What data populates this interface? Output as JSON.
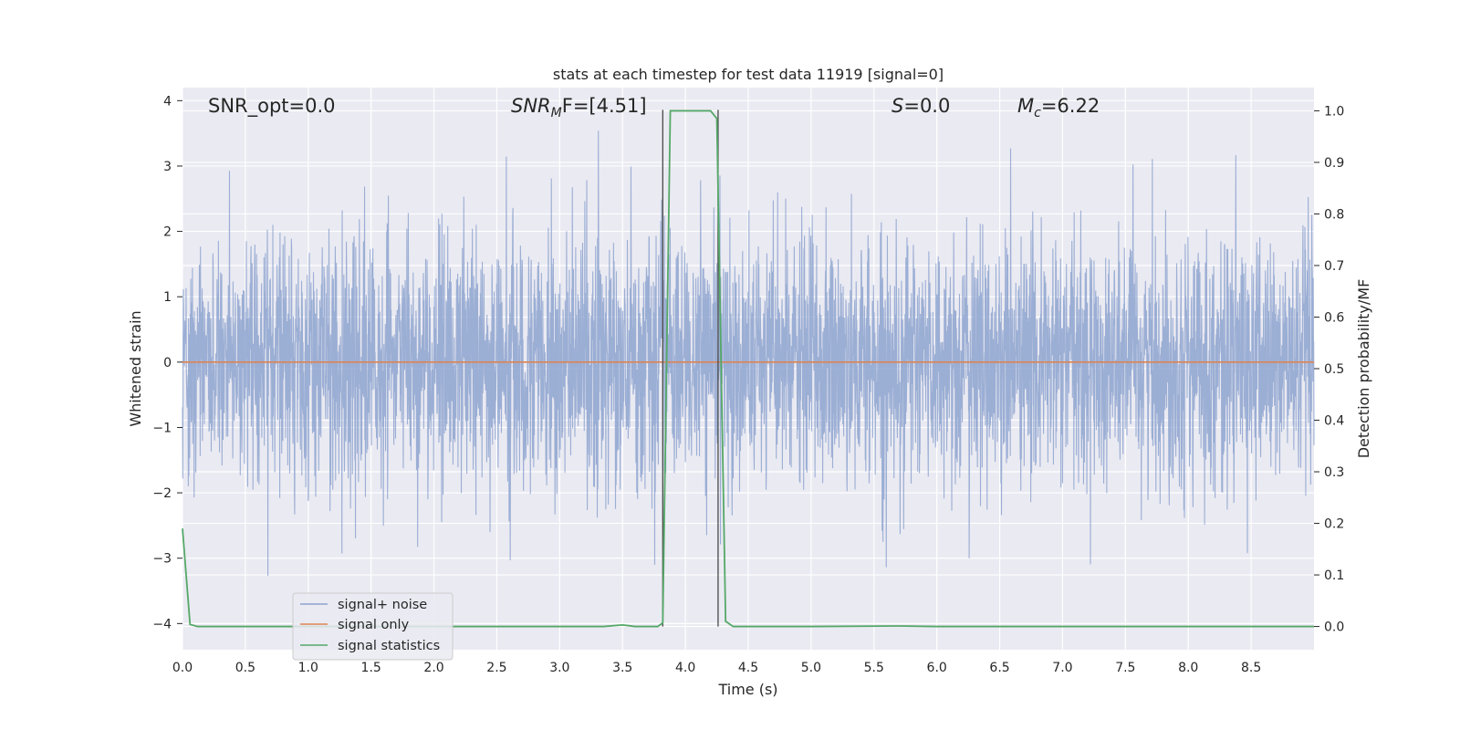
{
  "chart_data": {
    "type": "line",
    "title": "stats at each timestep for test data 11919 [signal=0]",
    "xlabel": "Time (s)",
    "ylabel": "Whitened strain",
    "ylabel_right": "Detection probability/MF",
    "xlim": [
      0.0,
      9.0
    ],
    "ylim": [
      -4.4,
      4.2
    ],
    "ylim_right": [
      -0.045,
      1.045
    ],
    "x_ticks": [
      "0.0",
      "0.5",
      "1.0",
      "1.5",
      "2.0",
      "2.5",
      "3.0",
      "3.5",
      "4.0",
      "4.5",
      "5.0",
      "5.5",
      "6.0",
      "6.5",
      "7.0",
      "7.5",
      "8.0",
      "8.5"
    ],
    "y_ticks": [
      "4",
      "3",
      "2",
      "1",
      "0",
      "−1",
      "−2",
      "−3",
      "−4"
    ],
    "y_ticks_right": [
      "1.0",
      "0.9",
      "0.8",
      "0.7",
      "0.6",
      "0.5",
      "0.4",
      "0.3",
      "0.2",
      "0.1",
      "0.0"
    ],
    "grid": true,
    "legend_position": "lower-left",
    "annotations": {
      "snr_opt": "SNR_opt=0.0",
      "snr_mf_main": "SNR",
      "snr_mf_sub": "M",
      "snr_mf_rest": "F=[4.51]",
      "s_main": "S",
      "s_rest": "=0.0",
      "mc_main": "M",
      "mc_sub": "c",
      "mc_rest": "=6.22"
    },
    "vertical_markers": [
      3.82,
      4.26
    ],
    "series": [
      {
        "name": "signal+ noise",
        "color": "#8da3cf",
        "description_values": "whitened strain noise, approx ±2 typical with peaks to about ±3.8",
        "envelope": {
          "typical_amplitude": 1.5,
          "max_amplitude": 3.8
        }
      },
      {
        "name": "signal only",
        "color": "#dd8452",
        "x": [
          0.0,
          9.0
        ],
        "y": [
          0.0,
          0.0
        ]
      },
      {
        "name": "signal statistics",
        "color": "#55a868",
        "axis": "right",
        "x": [
          0.0,
          0.06,
          0.12,
          0.5,
          1.0,
          2.0,
          3.0,
          3.35,
          3.5,
          3.6,
          3.78,
          3.82,
          3.88,
          4.2,
          4.25,
          4.32,
          4.38,
          5.0,
          5.7,
          6.0,
          7.0,
          8.0,
          9.0
        ],
        "y": [
          0.19,
          0.004,
          0.0,
          0.0,
          0.0,
          0.0,
          0.0,
          0.0,
          0.003,
          0.0,
          0.0,
          0.007,
          1.0,
          1.0,
          0.985,
          0.01,
          0.0,
          0.0,
          0.001,
          0.0,
          0.0,
          0.0,
          0.0
        ]
      }
    ]
  }
}
